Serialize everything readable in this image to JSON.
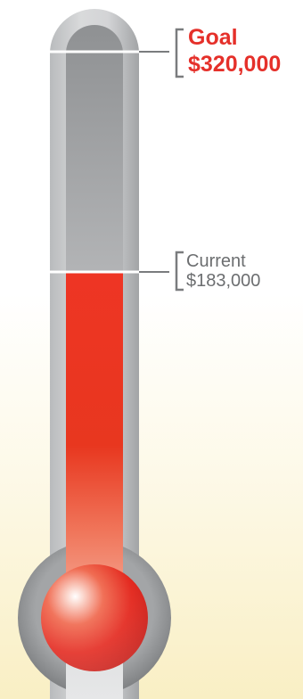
{
  "goal": {
    "title": "Goal",
    "amount": "$320,000",
    "value": 320000
  },
  "current": {
    "title": "Current",
    "amount": "$183,000",
    "value": 183000
  },
  "colors": {
    "goal_text": "#e5302a",
    "current_text": "#6c6e70",
    "mercury": "#ec3424",
    "tube": "#a7a9ab",
    "bulb_rim": "#8e9092"
  }
}
